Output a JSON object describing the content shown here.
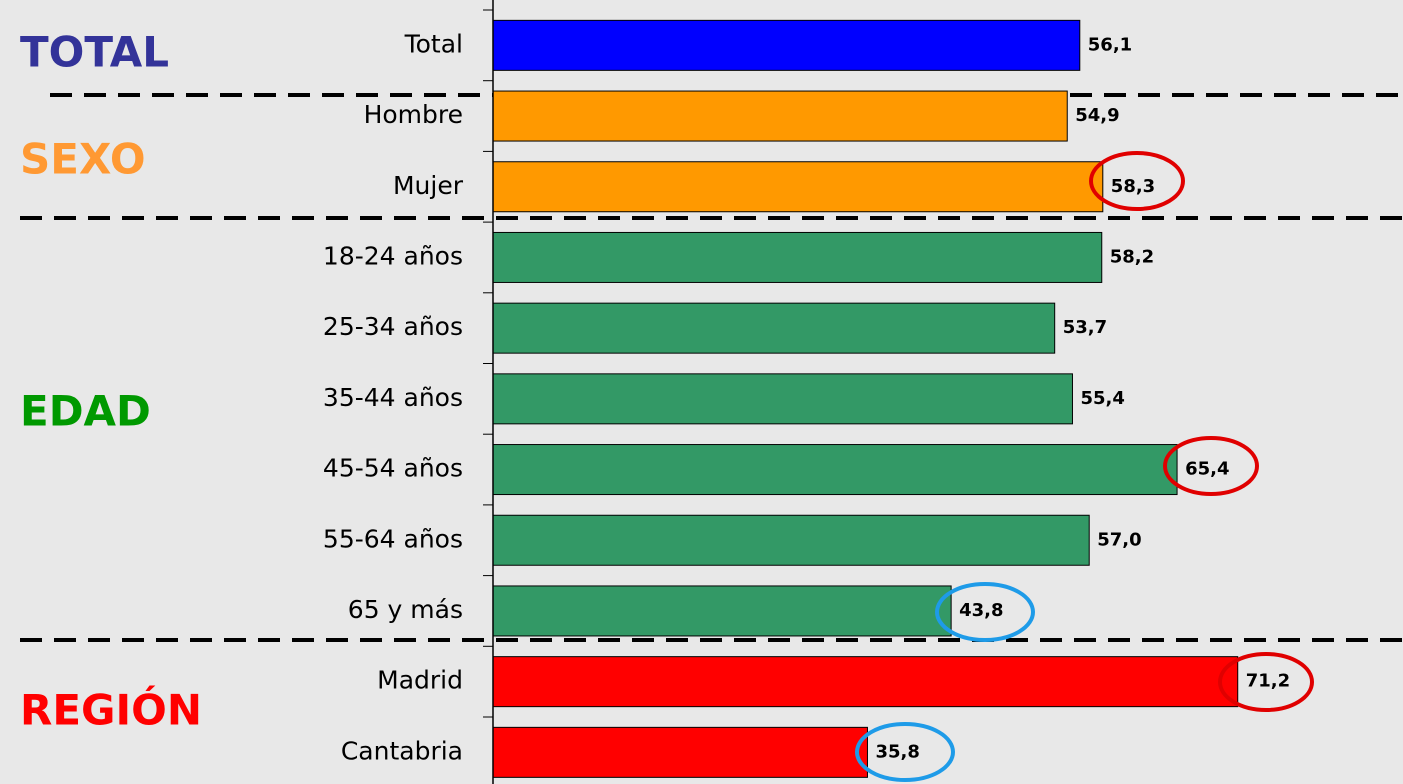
{
  "chart_data": {
    "type": "hbar",
    "categories": [
      "Total",
      "Hombre",
      "Mujer",
      "18-24 años",
      "25-34 años",
      "35-44 años",
      "45-54 años",
      "55-64 años",
      "65 y más",
      "Madrid",
      "Cantabria"
    ],
    "values": [
      56.1,
      54.9,
      58.3,
      58.2,
      53.7,
      55.4,
      65.4,
      57.0,
      43.8,
      71.2,
      35.8
    ],
    "value_labels": [
      "56,1",
      "54,9",
      "58,3",
      "58,2",
      "53,7",
      "55,4",
      "65,4",
      "57,0",
      "43,8",
      "71,2",
      "35,8"
    ],
    "colors": [
      "#0000ff",
      "#ff9900",
      "#ff9900",
      "#339966",
      "#339966",
      "#339966",
      "#339966",
      "#339966",
      "#339966",
      "#ff0000",
      "#ff0000"
    ],
    "xlim": [
      0,
      87
    ],
    "groups": [
      {
        "label": "TOTAL",
        "color": "#333399"
      },
      {
        "label": "SEXO",
        "color": "#ff9933"
      },
      {
        "label": "EDAD",
        "color": "#009900"
      },
      {
        "label": "REGIÓN",
        "color": "#ff0000"
      }
    ]
  }
}
